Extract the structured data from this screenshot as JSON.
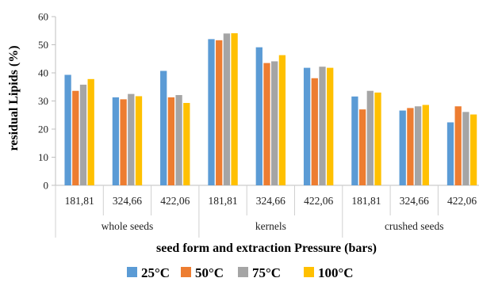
{
  "chart_data": {
    "type": "bar",
    "xlabel": "seed form and extraction  Pressure (bars)",
    "ylabel": "residual Lipids (%)",
    "ylim": [
      0,
      60
    ],
    "yticks": [
      0,
      10,
      20,
      30,
      40,
      50,
      60
    ],
    "grid": false,
    "legend_position": "bottom",
    "groups": [
      {
        "label": "whole seeds",
        "pressures": [
          "181,81",
          "324,66",
          "422,06"
        ]
      },
      {
        "label": "kernels",
        "pressures": [
          "181,81",
          "324,66",
          "422,06"
        ]
      },
      {
        "label": "crushed seeds",
        "pressures": [
          "181,81",
          "324,66",
          "422,06"
        ]
      }
    ],
    "series": [
      {
        "name": "25°C",
        "color": "#5B9BD5",
        "values": [
          39.3,
          31.3,
          40.7,
          52.0,
          49.1,
          41.8,
          31.6,
          26.6,
          22.4
        ]
      },
      {
        "name": "50°C",
        "color": "#ED7D31",
        "values": [
          33.6,
          30.6,
          31.3,
          51.6,
          43.5,
          38.1,
          27.0,
          27.5,
          28.1
        ]
      },
      {
        "name": "75°C",
        "color": "#A5A5A5",
        "values": [
          35.8,
          32.5,
          32.1,
          54.0,
          44.1,
          42.2,
          33.6,
          28.1,
          26.1
        ]
      },
      {
        "name": "100°C",
        "color": "#FFC000",
        "values": [
          37.8,
          31.7,
          29.3,
          54.1,
          46.3,
          41.8,
          33.0,
          28.6,
          25.2
        ]
      }
    ]
  }
}
